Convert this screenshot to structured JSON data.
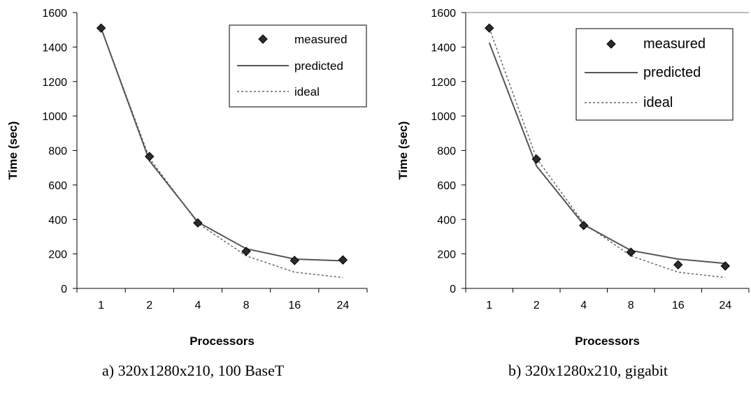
{
  "chart_data": [
    {
      "type": "line",
      "caption": "a) 320x1280x210, 100 BaseT",
      "categories": [
        "1",
        "2",
        "4",
        "8",
        "16",
        "24"
      ],
      "series": [
        {
          "name": "measured",
          "style": "diamond-markers",
          "values": [
            1510,
            765,
            380,
            215,
            162,
            165
          ]
        },
        {
          "name": "predicted",
          "style": "solid-line",
          "values": [
            1510,
            740,
            385,
            230,
            170,
            160
          ]
        },
        {
          "name": "ideal",
          "style": "dotted-line",
          "values": [
            1510,
            755,
            378,
            189,
            94,
            63
          ]
        }
      ],
      "xlabel": "Processors",
      "ylabel": "Time (sec)",
      "ylim": [
        0,
        1600
      ],
      "yticks": [
        "0",
        "200",
        "400",
        "600",
        "800",
        "1000",
        "1200",
        "1400",
        "1600"
      ],
      "grid": false,
      "legend": "top-right"
    },
    {
      "type": "line",
      "caption": "b) 320x1280x210, gigabit",
      "categories": [
        "1",
        "2",
        "4",
        "8",
        "16",
        "24"
      ],
      "series": [
        {
          "name": "measured",
          "style": "diamond-markers",
          "values": [
            1510,
            750,
            365,
            210,
            137,
            130
          ]
        },
        {
          "name": "predicted",
          "style": "solid-line",
          "values": [
            1425,
            710,
            370,
            220,
            170,
            145
          ]
        },
        {
          "name": "ideal",
          "style": "dotted-line",
          "values": [
            1510,
            755,
            378,
            189,
            94,
            63
          ]
        }
      ],
      "xlabel": "Processors",
      "ylabel": "Time (sec)",
      "ylim": [
        0,
        1600
      ],
      "yticks": [
        "0",
        "200",
        "400",
        "600",
        "800",
        "1000",
        "1200",
        "1400",
        "1600"
      ],
      "grid": false,
      "legend": "top-right"
    }
  ],
  "colors": {
    "measured_marker": "#2b2b2b",
    "predicted_line": "#555555",
    "ideal_line": "#666666",
    "axis": "#000000"
  }
}
